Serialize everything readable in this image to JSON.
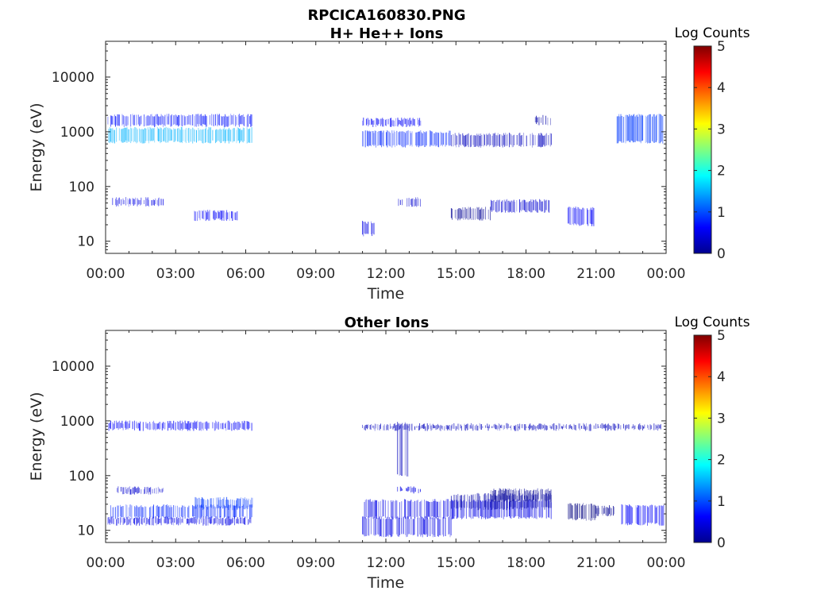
{
  "figure": {
    "title": "RPCICA160830.PNG"
  },
  "chart_data": [
    {
      "type": "heatmap",
      "title": "H+ He++ Ions",
      "xlabel": "Time",
      "ylabel": "Energy (eV)",
      "yscale": "log",
      "xticks": [
        "00:00",
        "03:00",
        "06:00",
        "09:00",
        "12:00",
        "15:00",
        "18:00",
        "21:00",
        "00:00"
      ],
      "yticks": [
        "10",
        "100",
        "1000",
        "10000"
      ],
      "ylim": [
        6,
        45000
      ],
      "colorbar": {
        "label": "Log Counts",
        "ticks": [
          "0",
          "1",
          "2",
          "3",
          "4",
          "5"
        ],
        "range": [
          0,
          5
        ],
        "colormap": "jet"
      },
      "grid": false,
      "bands": [
        {
          "t_start": 0.1,
          "t_end": 6.3,
          "e_low": 650,
          "e_high": 1150,
          "log_counts": 1.5
        },
        {
          "t_start": 0.1,
          "t_end": 6.3,
          "e_low": 1300,
          "e_high": 2000,
          "log_counts": 0.7
        },
        {
          "t_start": 0.3,
          "t_end": 2.5,
          "e_low": 45,
          "e_high": 60,
          "log_counts": 0.5
        },
        {
          "t_start": 3.8,
          "t_end": 5.7,
          "e_low": 25,
          "e_high": 35,
          "log_counts": 0.6
        },
        {
          "t_start": 11.0,
          "t_end": 14.8,
          "e_low": 550,
          "e_high": 1000,
          "log_counts": 0.8
        },
        {
          "t_start": 11.0,
          "t_end": 13.5,
          "e_low": 1300,
          "e_high": 1700,
          "log_counts": 0.6
        },
        {
          "t_start": 14.8,
          "t_end": 19.1,
          "e_low": 550,
          "e_high": 900,
          "log_counts": 0.3
        },
        {
          "t_start": 18.4,
          "t_end": 19.1,
          "e_low": 1400,
          "e_high": 1900,
          "log_counts": 0.2
        },
        {
          "t_start": 11.0,
          "t_end": 11.6,
          "e_low": 13,
          "e_high": 22,
          "log_counts": 0.5
        },
        {
          "t_start": 12.5,
          "t_end": 13.5,
          "e_low": 45,
          "e_high": 60,
          "log_counts": 0.4
        },
        {
          "t_start": 14.8,
          "t_end": 16.5,
          "e_low": 25,
          "e_high": 40,
          "log_counts": 0.1
        },
        {
          "t_start": 16.5,
          "t_end": 19.1,
          "e_low": 35,
          "e_high": 55,
          "log_counts": 0.4
        },
        {
          "t_start": 19.8,
          "t_end": 21.0,
          "e_low": 20,
          "e_high": 40,
          "log_counts": 0.6
        },
        {
          "t_start": 21.9,
          "t_end": 23.9,
          "e_low": 650,
          "e_high": 2000,
          "log_counts": 0.9
        }
      ]
    },
    {
      "type": "heatmap",
      "title": "Other Ions",
      "xlabel": "Time",
      "ylabel": "Energy (eV)",
      "yscale": "log",
      "xticks": [
        "00:00",
        "03:00",
        "06:00",
        "09:00",
        "12:00",
        "15:00",
        "18:00",
        "21:00",
        "00:00"
      ],
      "yticks": [
        "10",
        "100",
        "1000",
        "10000"
      ],
      "ylim": [
        6,
        45000
      ],
      "colorbar": {
        "label": "Log Counts",
        "ticks": [
          "0",
          "1",
          "2",
          "3",
          "4",
          "5"
        ],
        "range": [
          0,
          5
        ],
        "colormap": "jet"
      },
      "grid": false,
      "bands": [
        {
          "t_start": 0.1,
          "t_end": 6.3,
          "e_low": 700,
          "e_high": 950,
          "log_counts": 0.6
        },
        {
          "t_start": 0.1,
          "t_end": 6.3,
          "e_low": 17,
          "e_high": 28,
          "log_counts": 0.8
        },
        {
          "t_start": 0.1,
          "t_end": 6.3,
          "e_low": 13,
          "e_high": 17,
          "log_counts": 0.5
        },
        {
          "t_start": 3.8,
          "t_end": 6.3,
          "e_low": 25,
          "e_high": 38,
          "log_counts": 0.9
        },
        {
          "t_start": 0.5,
          "t_end": 2.5,
          "e_low": 48,
          "e_high": 60,
          "log_counts": 0.4
        },
        {
          "t_start": 11.0,
          "t_end": 19.1,
          "e_low": 17,
          "e_high": 35,
          "log_counts": 0.5
        },
        {
          "t_start": 11.0,
          "t_end": 14.8,
          "e_low": 8,
          "e_high": 17,
          "log_counts": 0.5
        },
        {
          "t_start": 12.5,
          "t_end": 13.0,
          "e_low": 100,
          "e_high": 900,
          "log_counts": 0.3
        },
        {
          "t_start": 12.5,
          "t_end": 13.5,
          "e_low": 50,
          "e_high": 60,
          "log_counts": 0.5
        },
        {
          "t_start": 14.8,
          "t_end": 19.1,
          "e_low": 25,
          "e_high": 45,
          "log_counts": 0.2
        },
        {
          "t_start": 16.5,
          "t_end": 19.1,
          "e_low": 35,
          "e_high": 55,
          "log_counts": 0.1
        },
        {
          "t_start": 19.8,
          "t_end": 21.0,
          "e_low": 16,
          "e_high": 30,
          "log_counts": 0.0
        },
        {
          "t_start": 21.0,
          "t_end": 21.8,
          "e_low": 19,
          "e_high": 27,
          "log_counts": 0.1
        },
        {
          "t_start": 22.1,
          "t_end": 23.9,
          "e_low": 13,
          "e_high": 28,
          "log_counts": 0.6
        },
        {
          "t_start": 11.0,
          "t_end": 23.9,
          "e_low": 700,
          "e_high": 850,
          "log_counts": 0.3
        }
      ]
    }
  ]
}
